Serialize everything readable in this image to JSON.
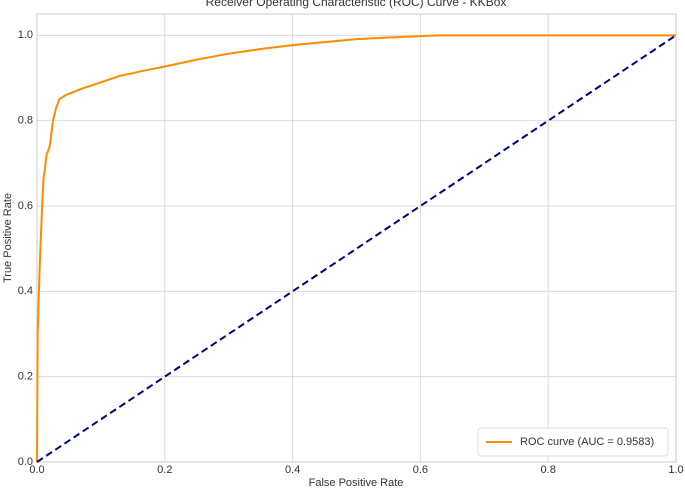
{
  "chart_data": {
    "type": "line",
    "title": "Receiver Operating Characteristic (ROC) Curve - KKBox",
    "xlabel": "False Positive Rate",
    "ylabel": "True Positive Rate",
    "xlim": [
      0,
      1
    ],
    "ylim": [
      0,
      1.05
    ],
    "xticks": [
      {
        "value": 0,
        "label": "0.0"
      },
      0.2,
      0.4,
      0.6,
      0.8,
      {
        "value": 1,
        "label": "1.0"
      }
    ],
    "yticks": [
      {
        "value": 0,
        "label": "0.0"
      },
      0.2,
      0.4,
      0.6,
      0.8,
      {
        "value": 1,
        "label": "1.0"
      }
    ],
    "grid": true,
    "legend": "lower right",
    "series": [
      {
        "name": "ROC curve (AUC = 0.9583)",
        "color": "#ff8c00",
        "style": "solid",
        "x": [
          0,
          0.001,
          0.004,
          0.008,
          0.01,
          0.015,
          0.02,
          0.025,
          0.03,
          0.035,
          0.045,
          0.07,
          0.1,
          0.13,
          0.17,
          0.2,
          0.25,
          0.3,
          0.35,
          0.4,
          0.45,
          0.5,
          0.55,
          0.6,
          0.63,
          1
        ],
        "values": [
          0,
          0.3,
          0.45,
          0.6,
          0.66,
          0.72,
          0.74,
          0.8,
          0.83,
          0.85,
          0.86,
          0.875,
          0.89,
          0.905,
          0.918,
          0.927,
          0.943,
          0.957,
          0.968,
          0.977,
          0.984,
          0.991,
          0.995,
          0.998,
          1,
          1
        ]
      },
      {
        "color": "#000080",
        "style": "dashed",
        "x": [
          0,
          1
        ],
        "values": [
          0,
          1
        ]
      }
    ]
  }
}
